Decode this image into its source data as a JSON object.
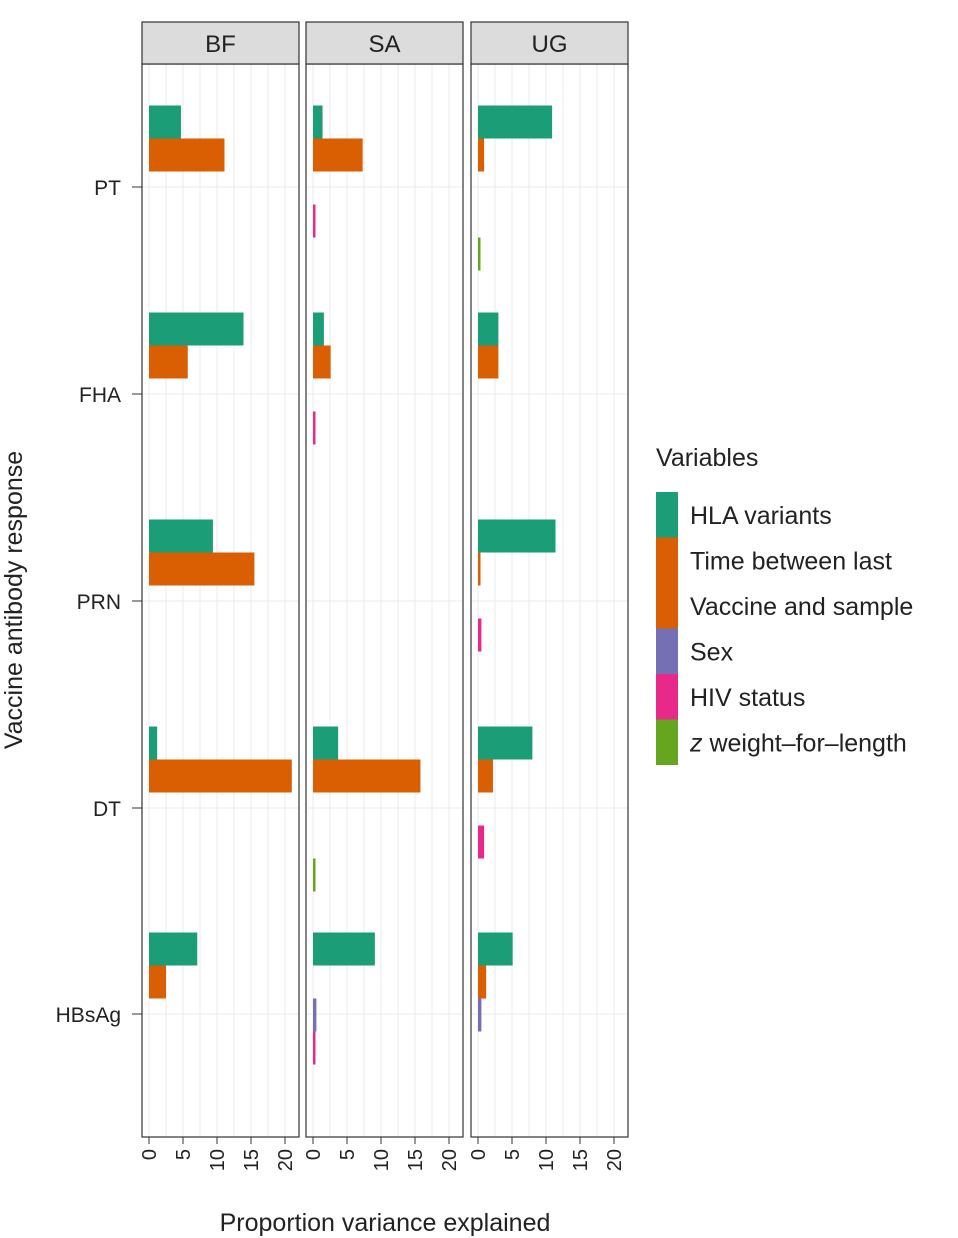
{
  "chart_data": {
    "type": "bar",
    "orientation": "horizontal",
    "xlabel": "Proportion variance explained",
    "ylabel": "Vaccine antibody response",
    "xlim": [
      0,
      21
    ],
    "xticks": [
      0,
      5,
      10,
      15,
      20
    ],
    "categories": [
      "PT",
      "FHA",
      "PRN",
      "DT",
      "HBsAg"
    ],
    "legend": {
      "title": "Variables",
      "position": "right",
      "entries": [
        {
          "key": "hla",
          "color": "#1b9e77",
          "lines": [
            "HLA variants"
          ],
          "italic_prefix": ""
        },
        {
          "key": "time",
          "color": "#d95f02",
          "lines": [
            "Time between last",
            "Vaccine and sample"
          ],
          "italic_prefix": ""
        },
        {
          "key": "sex",
          "color": "#7570b3",
          "lines": [
            "Sex"
          ],
          "italic_prefix": ""
        },
        {
          "key": "hiv",
          "color": "#e7298a",
          "lines": [
            "HIV status"
          ],
          "italic_prefix": ""
        },
        {
          "key": "wfl",
          "color": "#66a61e",
          "lines": [
            " weight–for–length"
          ],
          "italic_prefix": "z"
        }
      ]
    },
    "series_order": [
      "hla",
      "time",
      "sex",
      "hiv",
      "wfl"
    ],
    "panels": [
      {
        "name": "BF",
        "values": {
          "PT": [
            4.7,
            11.1,
            0,
            0,
            0
          ],
          "FHA": [
            13.9,
            5.7,
            0,
            0,
            0
          ],
          "PRN": [
            9.4,
            15.5,
            0,
            0,
            0
          ],
          "DT": [
            1.2,
            21.0,
            0,
            0,
            0
          ],
          "HBsAg": [
            7.1,
            2.5,
            0,
            0,
            0
          ]
        }
      },
      {
        "name": "SA",
        "values": {
          "PT": [
            1.4,
            7.3,
            0,
            0.2,
            0
          ],
          "FHA": [
            1.6,
            2.6,
            0,
            0.3,
            0
          ],
          "PRN": [
            0,
            0,
            0,
            0,
            0
          ],
          "DT": [
            3.7,
            15.8,
            0,
            0,
            0.2
          ],
          "HBsAg": [
            9.1,
            0,
            0.5,
            0.3,
            0
          ]
        }
      },
      {
        "name": "UG",
        "values": {
          "PT": [
            10.9,
            0.9,
            0,
            0,
            0.3
          ],
          "FHA": [
            3.0,
            3.0,
            0,
            0,
            0
          ],
          "PRN": [
            11.4,
            0.2,
            0,
            0.5,
            0
          ],
          "DT": [
            8.0,
            2.2,
            0,
            0.9,
            0
          ],
          "HBsAg": [
            5.1,
            1.2,
            0.5,
            0,
            0
          ]
        }
      }
    ]
  }
}
